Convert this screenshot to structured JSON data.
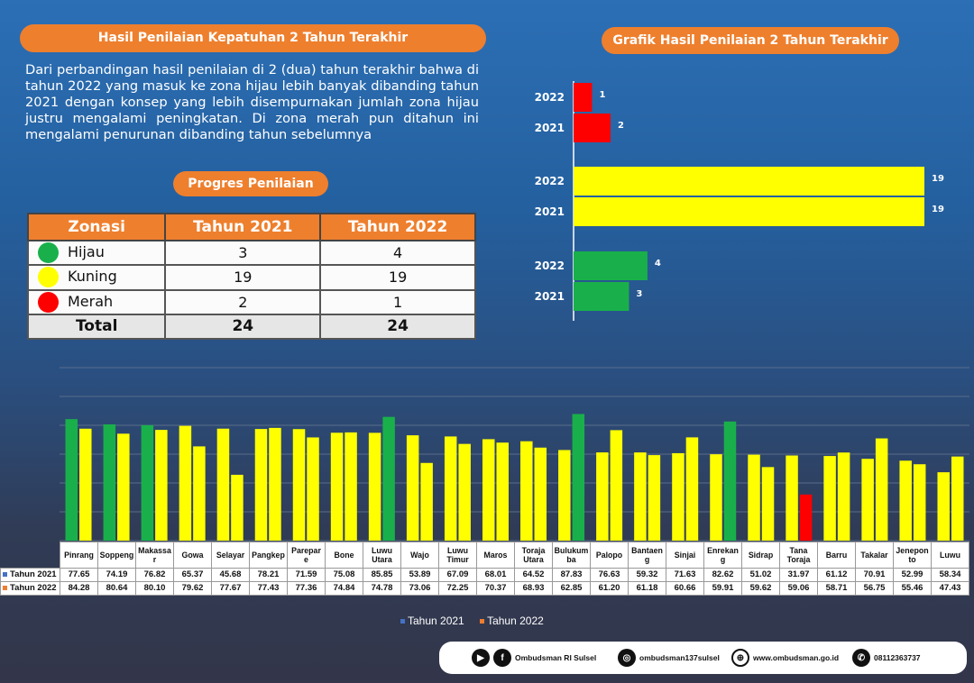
{
  "header": {
    "left_title": "Hasil Penilaian Kepatuhan 2 Tahun Terakhir",
    "right_title": "Grafik Hasil Penilaian 2 Tahun Terakhir",
    "description": "Dari perbandingan hasil penilaian di 2 (dua) tahun terakhir bahwa di tahun 2022 yang masuk ke zona hijau lebih banyak dibanding tahun 2021 dengan konsep yang lebih disempurnakan jumlah zona hijau justru mengalami peningkatan. Di zona merah pun ditahun ini mengalami penurunan dibanding tahun sebelumnya",
    "progress_title": "Progres Penilaian"
  },
  "zonasi_table": {
    "headers": [
      "Zonasi",
      "Tahun 2021",
      "Tahun 2022"
    ],
    "rows": [
      {
        "zone": "Hijau",
        "color": "#19b04b",
        "y2021": "3",
        "y2022": "4"
      },
      {
        "zone": "Kuning",
        "color": "#ffff00",
        "y2021": "19",
        "y2022": "19"
      },
      {
        "zone": "Merah",
        "color": "#ff0000",
        "y2021": "2",
        "y2022": "1"
      }
    ],
    "total": {
      "label": "Total",
      "y2021": "24",
      "y2022": "24"
    }
  },
  "chart_data": [
    {
      "type": "bar",
      "orientation": "horizontal",
      "title": "Grafik Hasil Penilaian 2 Tahun Terakhir",
      "groups": [
        {
          "color": "#ff0000",
          "bars": [
            {
              "label": "2022",
              "value": 1
            },
            {
              "label": "2021",
              "value": 2
            }
          ]
        },
        {
          "color": "#ffff00",
          "bars": [
            {
              "label": "2022",
              "value": 19
            },
            {
              "label": "2021",
              "value": 19
            }
          ]
        },
        {
          "color": "#19b04b",
          "bars": [
            {
              "label": "2022",
              "value": 4
            },
            {
              "label": "2021",
              "value": 3
            }
          ]
        }
      ],
      "xlim": [
        0,
        19
      ]
    },
    {
      "type": "bar",
      "categories": [
        "Pinrang",
        "Soppeng",
        "Makassar",
        "Gowa",
        "Selayar",
        "Pangkep",
        "Parepare",
        "Bone",
        "Luwu Utara",
        "Wajo",
        "Luwu Timur",
        "Maros",
        "Toraja Utara",
        "Bulukumba",
        "Palopo",
        "Bantaeng",
        "Sinjai",
        "Enrekang",
        "Sidrap",
        "Tana Toraja",
        "Barru",
        "Takalar",
        "Jeneponto",
        "Luwu"
      ],
      "category_display": [
        "Pinrang",
        "Soppeng",
        "Makassa r",
        "Gowa",
        "Selayar",
        "Pangkep",
        "Parepar e",
        "Bone",
        "Luwu Utara",
        "Wajo",
        "Luwu Timur",
        "Maros",
        "Toraja Utara",
        "Bulukum ba",
        "Palopo",
        "Bantaen g",
        "Sinjai",
        "Enrekan g",
        "Sidrap",
        "Tana Toraja",
        "Barru",
        "Takalar",
        "Jenepon to",
        "Luwu"
      ],
      "series": [
        {
          "name": "Tahun 2021",
          "legend_color": "#4472c4",
          "values": [
            77.65,
            74.19,
            76.82,
            65.37,
            45.68,
            78.21,
            71.59,
            75.08,
            85.85,
            53.89,
            67.09,
            68.01,
            64.52,
            87.83,
            76.63,
            59.32,
            71.63,
            82.62,
            51.02,
            31.97,
            61.12,
            70.91,
            52.99,
            58.34
          ]
        },
        {
          "name": "Tahun 2022",
          "legend_color": "#ed7d31",
          "values": [
            84.28,
            80.64,
            80.1,
            79.62,
            77.67,
            77.43,
            77.36,
            74.84,
            74.78,
            73.06,
            72.25,
            70.37,
            68.93,
            62.85,
            61.2,
            61.18,
            60.66,
            59.91,
            59.62,
            59.06,
            58.71,
            56.75,
            55.46,
            47.43
          ]
        }
      ],
      "value_labels_2021": [
        "77.65",
        "74.19",
        "76.82",
        "65.37",
        "45.68",
        "78.21",
        "71.59",
        "75.08",
        "85.85",
        "53.89",
        "67.09",
        "68.01",
        "64.52",
        "87.83",
        "76.63",
        "59.32",
        "71.63",
        "82.62",
        "51.02",
        "31.97",
        "61.12",
        "70.91",
        "52.99",
        "58.34"
      ],
      "value_labels_2022": [
        "84.28",
        "80.64",
        "80.10",
        "79.62",
        "77.67",
        "77.43",
        "77.36",
        "74.84",
        "74.78",
        "73.06",
        "72.25",
        "70.37",
        "68.93",
        "62.85",
        "61.20",
        "61.18",
        "60.66",
        "59.91",
        "59.62",
        "59.06",
        "58.71",
        "56.75",
        "55.46",
        "47.43"
      ],
      "zone_colors": {
        "hijau": "#19b04b",
        "kuning": "#ffff00",
        "merah": "#ff0000"
      },
      "ylim": [
        0,
        100
      ],
      "grid": true
    }
  ],
  "footer": {
    "facebook": "Ombudsman RI Sulsel",
    "instagram": "ombudsman137sulsel",
    "website": "www.ombudsman.go.id",
    "whatsapp": "08112363737"
  }
}
